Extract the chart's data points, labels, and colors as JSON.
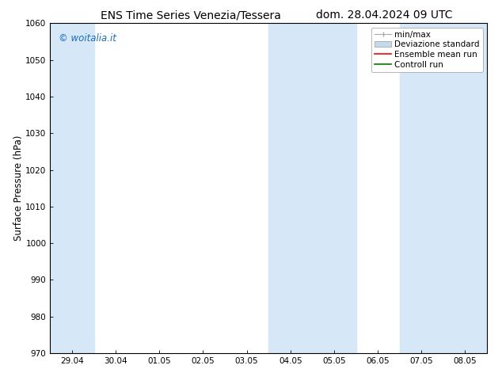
{
  "title_left": "ENS Time Series Venezia/Tessera",
  "title_right": "dom. 28.04.2024 09 UTC",
  "ylabel": "Surface Pressure (hPa)",
  "ylim": [
    970,
    1060
  ],
  "yticks": [
    970,
    980,
    990,
    1000,
    1010,
    1020,
    1030,
    1040,
    1050,
    1060
  ],
  "xtick_labels": [
    "29.04",
    "30.04",
    "01.05",
    "02.05",
    "03.05",
    "04.05",
    "05.05",
    "06.05",
    "07.05",
    "08.05"
  ],
  "watermark": "© woitalia.it",
  "watermark_color": "#1a6abf",
  "background_color": "#ffffff",
  "plot_bg_color": "#ffffff",
  "shaded_color": "#d6e8f7",
  "shaded_regions": [
    {
      "xstart": 0.0,
      "xend": 1.0
    },
    {
      "xstart": 5.0,
      "xend": 7.0
    },
    {
      "xstart": 8.0,
      "xend": 10.0
    }
  ],
  "legend_entries": [
    {
      "label": "min/max",
      "color": "#999999"
    },
    {
      "label": "Deviazione standard",
      "color": "#c5daea"
    },
    {
      "label": "Ensemble mean run",
      "color": "#ff0000"
    },
    {
      "label": "Controll run",
      "color": "#007700"
    }
  ],
  "title_fontsize": 10,
  "tick_fontsize": 7.5,
  "ylabel_fontsize": 8.5,
  "legend_fontsize": 7.5
}
